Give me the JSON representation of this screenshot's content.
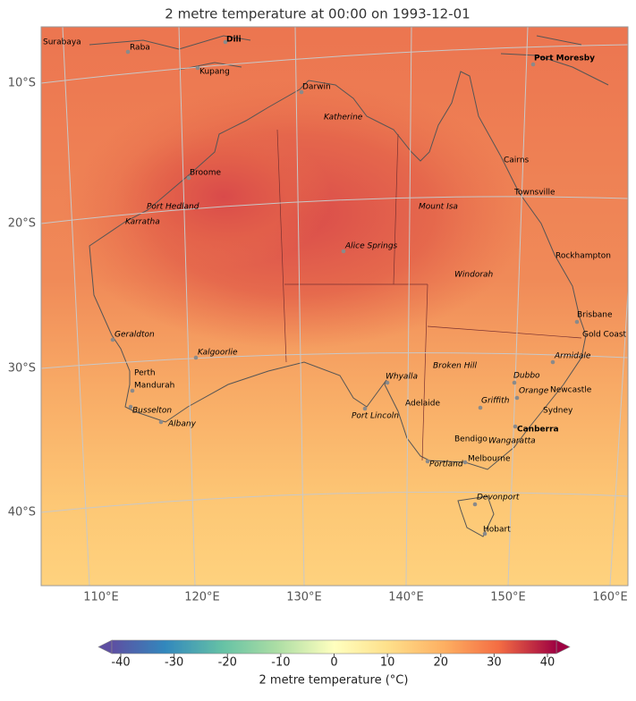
{
  "title": "2 metre temperature at 00:00 on 1993-12-01",
  "lat_labels": [
    "10°S",
    "20°S",
    "30°S",
    "40°S"
  ],
  "lon_labels": [
    "110°E",
    "120°E",
    "130°E",
    "140°E",
    "150°E",
    "160°E"
  ],
  "cities": [
    {
      "name": "Surabaya"
    },
    {
      "name": "Raba"
    },
    {
      "name": "Dili"
    },
    {
      "name": "Kupang"
    },
    {
      "name": "Port Moresby"
    },
    {
      "name": "Darwin"
    },
    {
      "name": "Katherine"
    },
    {
      "name": "Cairns"
    },
    {
      "name": "Broome"
    },
    {
      "name": "Townsville"
    },
    {
      "name": "Port Hedland"
    },
    {
      "name": "Mount Isa"
    },
    {
      "name": "Karratha"
    },
    {
      "name": "Alice Springs"
    },
    {
      "name": "Rockhampton"
    },
    {
      "name": "Windorah"
    },
    {
      "name": "Brisbane"
    },
    {
      "name": "Gold Coast"
    },
    {
      "name": "Geraldton"
    },
    {
      "name": "Kalgoorlie"
    },
    {
      "name": "Armidale"
    },
    {
      "name": "Broken Hill"
    },
    {
      "name": "Perth"
    },
    {
      "name": "Whyalla"
    },
    {
      "name": "Dubbo"
    },
    {
      "name": "Mandurah"
    },
    {
      "name": "Newcastle"
    },
    {
      "name": "Orange"
    },
    {
      "name": "Griffith"
    },
    {
      "name": "Adelaide"
    },
    {
      "name": "Busselton"
    },
    {
      "name": "Sydney"
    },
    {
      "name": "Port Lincoln"
    },
    {
      "name": "Albany"
    },
    {
      "name": "Canberra"
    },
    {
      "name": "Bendigo"
    },
    {
      "name": "Wangaratta"
    },
    {
      "name": "Melbourne"
    },
    {
      "name": "Portland"
    },
    {
      "name": "Devonport"
    },
    {
      "name": "Hobart"
    }
  ],
  "colorbar": {
    "label": "2 metre temperature (°C)",
    "lim": [
      -40,
      40
    ],
    "ticks": [
      -40,
      -30,
      -20,
      -10,
      0,
      10,
      20,
      30,
      40
    ]
  }
}
